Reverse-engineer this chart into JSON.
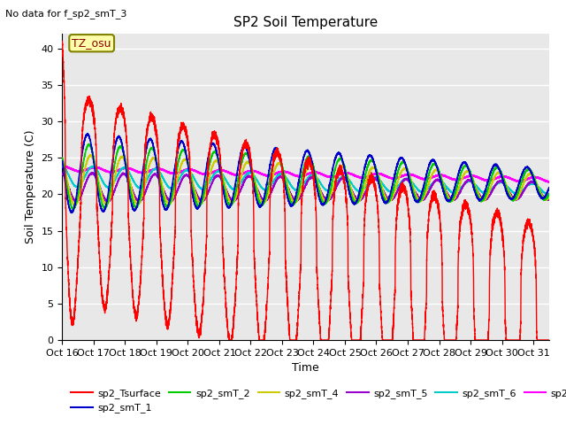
{
  "title": "SP2 Soil Temperature",
  "no_data_text": "No data for f_sp2_smT_3",
  "xlabel": "Time",
  "ylabel": "Soil Temperature (C)",
  "tz_label": "TZ_osu",
  "xlim": [
    0,
    15.5
  ],
  "ylim": [
    0,
    42
  ],
  "yticks": [
    0,
    5,
    10,
    15,
    20,
    25,
    30,
    35,
    40
  ],
  "xtick_labels": [
    "Oct 16",
    "Oct 17",
    "Oct 18",
    "Oct 19",
    "Oct 20",
    "Oct 21",
    "Oct 22",
    "Oct 23",
    "Oct 24",
    "Oct 25",
    "Oct 26",
    "Oct 27",
    "Oct 28",
    "Oct 29",
    "Oct 30",
    "Oct 31"
  ],
  "bg_color": "#e8e8e8",
  "grid_color": "white",
  "series_colors": {
    "sp2_Tsurface": "#ff0000",
    "sp2_smT_1": "#0000cc",
    "sp2_smT_2": "#00cc00",
    "sp2_smT_4": "#cccc00",
    "sp2_smT_5": "#9900cc",
    "sp2_smT_6": "#00cccc",
    "sp2_smT_7": "#ff00ff"
  },
  "figsize": [
    6.4,
    4.8
  ],
  "dpi": 100
}
